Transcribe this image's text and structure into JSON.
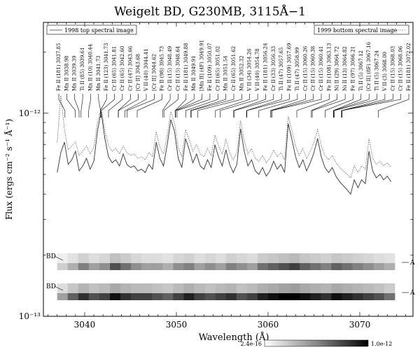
{
  "chart_data": {
    "type": "line",
    "title": "Weigelt BD, G230MB, 3115Å−1",
    "xlabel": "Wavelength (Å)",
    "ylabel": "Flux (ergs cm⁻² s⁻¹ Å⁻¹)",
    "xlim": [
      3035.5,
      3075.8
    ],
    "ylim": [
      1e-13,
      2.8e-12
    ],
    "yscale": "log",
    "grid": false,
    "legend": "top",
    "x_ticks": [
      {
        "value": 3040,
        "label": "3040"
      },
      {
        "value": 3050,
        "label": "3050"
      },
      {
        "value": 3060,
        "label": "3060"
      },
      {
        "value": 3070,
        "label": "3070"
      }
    ],
    "y_ticks": [
      {
        "value": 1e-12,
        "label": "10⁻¹²"
      },
      {
        "value": 1e-13,
        "label": "10⁻¹³"
      }
    ],
    "series": [
      {
        "name": "1998 top spectral image",
        "style": "solid",
        "color": "#333333",
        "x": [
          3037.0,
          3037.4,
          3037.8,
          3038.2,
          3038.6,
          3039.0,
          3039.4,
          3039.8,
          3040.2,
          3040.6,
          3041.0,
          3041.4,
          3041.8,
          3042.2,
          3042.6,
          3043.0,
          3043.4,
          3043.8,
          3044.2,
          3044.6,
          3045.0,
          3045.4,
          3045.8,
          3046.2,
          3046.6,
          3047.0,
          3047.4,
          3047.8,
          3048.2,
          3048.6,
          3049.0,
          3049.4,
          3049.8,
          3050.2,
          3050.6,
          3051.0,
          3051.4,
          3051.8,
          3052.2,
          3052.6,
          3053.0,
          3053.4,
          3053.8,
          3054.2,
          3054.6,
          3055.0,
          3055.4,
          3055.8,
          3056.2,
          3056.6,
          3057.0,
          3057.4,
          3057.8,
          3058.2,
          3058.6,
          3059.0,
          3059.4,
          3059.8,
          3060.2,
          3060.6,
          3061.0,
          3061.4,
          3061.8,
          3062.2,
          3062.6,
          3063.0,
          3063.4,
          3063.8,
          3064.2,
          3064.6,
          3065.0,
          3065.4,
          3065.8,
          3066.2,
          3066.6,
          3067.0,
          3067.4,
          3067.8,
          3068.2,
          3068.6,
          3069.0,
          3069.4,
          3069.8,
          3070.2,
          3070.6,
          3071.0,
          3071.4,
          3071.8,
          3072.2,
          3072.6,
          3073.0,
          3073.4
        ],
        "y": [
          5.1e-13,
          6.4e-13,
          7.2e-13,
          5.6e-13,
          5.9e-13,
          6.5e-13,
          5.2e-13,
          5.5e-13,
          6e-13,
          5.3e-13,
          5.8e-13,
          8.2e-13,
          1.02e-12,
          7.5e-13,
          6.1e-13,
          5.7e-13,
          5.9e-13,
          5.5e-13,
          6.3e-13,
          5.6e-13,
          5.4e-13,
          5.5e-13,
          5.2e-13,
          5.3e-13,
          5.1e-13,
          5.6e-13,
          5.3e-13,
          7.2e-13,
          6e-13,
          5.5e-13,
          7e-13,
          9.3e-13,
          8.1e-13,
          6e-13,
          5.4e-13,
          7.5e-13,
          6.6e-13,
          5.7e-13,
          6.3e-13,
          5.5e-13,
          5.3e-13,
          5.9e-13,
          5.4e-13,
          7e-13,
          6.1e-13,
          5.5e-13,
          6.6e-13,
          5.6e-13,
          5.1e-13,
          5.6e-13,
          8.4e-13,
          6.5e-13,
          5.5e-13,
          5.9e-13,
          5.2e-13,
          5e-13,
          5.4e-13,
          4.9e-13,
          5.2e-13,
          5.8e-13,
          5.3e-13,
          5.6e-13,
          5.1e-13,
          8.9e-13,
          7.4e-13,
          6.1e-13,
          5.4e-13,
          5.9e-13,
          5.2e-13,
          5.7e-13,
          6.4e-13,
          7.5e-13,
          6.1e-13,
          5.4e-13,
          5.1e-13,
          5.4e-13,
          4.9e-13,
          4.6e-13,
          4.4e-13,
          4.2e-13,
          4e-13,
          4.7e-13,
          4.3e-13,
          4.7e-13,
          4.5e-13,
          6.5e-13,
          5.2e-13,
          4.8e-13,
          5e-13,
          4.7e-13,
          4.9e-13,
          4.6e-13
        ]
      },
      {
        "name": "1999 bottom spectral image",
        "style": "dotted",
        "color": "#555555",
        "x": [
          3037.0,
          3037.4,
          3037.8,
          3038.2,
          3038.6,
          3039.0,
          3039.4,
          3039.8,
          3040.2,
          3040.6,
          3041.0,
          3041.4,
          3041.8,
          3042.2,
          3042.6,
          3043.0,
          3043.4,
          3043.8,
          3044.2,
          3044.6,
          3045.0,
          3045.4,
          3045.8,
          3046.2,
          3046.6,
          3047.0,
          3047.4,
          3047.8,
          3048.2,
          3048.6,
          3049.0,
          3049.4,
          3049.8,
          3050.2,
          3050.6,
          3051.0,
          3051.4,
          3051.8,
          3052.2,
          3052.6,
          3053.0,
          3053.4,
          3053.8,
          3054.2,
          3054.6,
          3055.0,
          3055.4,
          3055.8,
          3056.2,
          3056.6,
          3057.0,
          3057.4,
          3057.8,
          3058.2,
          3058.6,
          3059.0,
          3059.4,
          3059.8,
          3060.2,
          3060.6,
          3061.0,
          3061.4,
          3061.8,
          3062.2,
          3062.6,
          3063.0,
          3063.4,
          3063.8,
          3064.2,
          3064.6,
          3065.0,
          3065.4,
          3065.8,
          3066.2,
          3066.6,
          3067.0,
          3067.4,
          3067.8,
          3068.2,
          3068.6,
          3069.0,
          3069.4,
          3069.8,
          3070.2,
          3070.6,
          3071.0,
          3071.4,
          3071.8,
          3072.2,
          3072.6,
          3073.0,
          3073.4
        ],
        "y": [
          7.2e-13,
          1.22e-12,
          8.3e-13,
          6.6e-13,
          6.9e-13,
          7.2e-13,
          6.2e-13,
          6.5e-13,
          6.9e-13,
          6.3e-13,
          6.8e-13,
          9e-13,
          1.06e-12,
          8.2e-13,
          6.9e-13,
          6.5e-13,
          6.7e-13,
          6.3e-13,
          6.9e-13,
          6.4e-13,
          6.2e-13,
          6.3e-13,
          6e-13,
          6.1e-13,
          5.9e-13,
          6.4e-13,
          6.1e-13,
          8.1e-13,
          6.8e-13,
          6.3e-13,
          7.8e-13,
          1.02e-12,
          8.9e-13,
          6.8e-13,
          6.1e-13,
          8.3e-13,
          7.4e-13,
          6.5e-13,
          7e-13,
          6.3e-13,
          6.1e-13,
          6.7e-13,
          6.2e-13,
          7.8e-13,
          6.9e-13,
          6.3e-13,
          7.4e-13,
          6.4e-13,
          5.9e-13,
          6.4e-13,
          9.2e-13,
          7.3e-13,
          6.3e-13,
          6.7e-13,
          6e-13,
          5.8e-13,
          6.2e-13,
          5.7e-13,
          6e-13,
          6.6e-13,
          6.1e-13,
          6.4e-13,
          5.9e-13,
          9.7e-13,
          8.2e-13,
          6.9e-13,
          6.2e-13,
          6.7e-13,
          6e-13,
          6.5e-13,
          7.2e-13,
          8.3e-13,
          6.9e-13,
          6.2e-13,
          5.9e-13,
          6.2e-13,
          5.7e-13,
          5.4e-13,
          5.2e-13,
          5e-13,
          4.8e-13,
          5.5e-13,
          5.1e-13,
          5.5e-13,
          5.3e-13,
          7.5e-13,
          6e-13,
          5.6e-13,
          5.8e-13,
          5.5e-13,
          5.7e-13,
          5.4e-13
        ]
      }
    ],
    "line_ids": [
      {
        "label": "Fe II (181) 3037.85",
        "x": 3037.85
      },
      {
        "label": "Mn II 3038.98",
        "x": 3038.98
      },
      {
        "label": "Mn II 3039.39",
        "x": 3039.39
      },
      {
        "label": "Ti II (85) 3039.61",
        "x": 3039.61
      },
      {
        "label": "Mn II (10) 3040.44",
        "x": 3040.44
      },
      {
        "label": "Mn II 3041.73",
        "x": 3041.73
      },
      {
        "label": "Fe II (123) 3041.73",
        "x": 3041.73
      },
      {
        "label": "Cr II (65) 3041.81",
        "x": 3041.81
      },
      {
        "label": "Cr II (65) 3042.60",
        "x": 3042.6
      },
      {
        "label": "Cr II (47) 3043.66",
        "x": 3043.66
      },
      {
        "label": "[Cr II] 3043.68",
        "x": 3043.68
      },
      {
        "label": "V II (40) 3044.41",
        "x": 3044.41
      },
      {
        "label": "[Cr II] 3044.62",
        "x": 3044.62
      },
      {
        "label": "Fe II (98) 3045.73",
        "x": 3045.73
      },
      {
        "label": "Cr II (15) 3048.49",
        "x": 3048.49
      },
      {
        "label": "Cr II (15) 3048.64",
        "x": 3048.64
      },
      {
        "label": "Fe II (181) 3049.88",
        "x": 3049.88
      },
      {
        "label": "Mn II 3049.91",
        "x": 3049.91
      },
      {
        "label": "[Mn II] (4F) 3049.91",
        "x": 3049.91
      },
      {
        "label": "Fe II (109) 3050.07",
        "x": 3050.07
      },
      {
        "label": "Cr II (65) 3051.02",
        "x": 3051.02
      },
      {
        "label": "Mn II 3051.54",
        "x": 3051.54
      },
      {
        "label": "Cr II (65) 3051.62",
        "x": 3051.62
      },
      {
        "label": "Mn II 3052.32",
        "x": 3052.32
      },
      {
        "label": "V II (34) 3054.26",
        "x": 3054.26
      },
      {
        "label": "V II (40) 3054.78",
        "x": 3054.78
      },
      {
        "label": "Fe II (181) 3056.24",
        "x": 3056.24
      },
      {
        "label": "Cr II (33) 3056.33",
        "x": 3056.33
      },
      {
        "label": "Ti II (47) 3057.65",
        "x": 3057.65
      },
      {
        "label": "Fe II (109) 3057.69",
        "x": 3057.69
      },
      {
        "label": "Ti II (47) 3058.99",
        "x": 3058.99
      },
      {
        "label": "Cr II (15) 3060.26",
        "x": 3060.26
      },
      {
        "label": "Cr II (15) 3060.38",
        "x": 3060.38
      },
      {
        "label": "Cr II (15) 3060.41",
        "x": 3060.41
      },
      {
        "label": "Fe II (108) 3063.13",
        "x": 3063.13
      },
      {
        "label": "Ni II (29) 3064.72",
        "x": 3064.72
      },
      {
        "label": "Ni II (13) 3064.82",
        "x": 3064.82
      },
      {
        "label": "Fe II (97) 3066.21",
        "x": 3066.21
      },
      {
        "label": "Ti II (5) 3067.12",
        "x": 3067.12
      },
      {
        "label": "[Cr II] (8F) 3067.16",
        "x": 3067.16
      },
      {
        "label": "Ti II (5) 3067.24",
        "x": 3067.24
      },
      {
        "label": "V II (3) 3068.00",
        "x": 3068.0
      },
      {
        "label": "Cr II (15) 3068.03",
        "x": 3068.03
      },
      {
        "label": "Cr II (15) 3068.06",
        "x": 3068.06
      },
      {
        "label": "Fe II (181) 3072.02",
        "x": 3072.02
      }
    ],
    "spectral_images": [
      {
        "label_left": "BD",
        "label_right": "A",
        "darkness": [
          0.15,
          0.25,
          0.4,
          0.3,
          0.35,
          0.55,
          0.45,
          0.35,
          0.3,
          0.3,
          0.25,
          0.35,
          0.4,
          0.3,
          0.35,
          0.3,
          0.4,
          0.35,
          0.3,
          0.45,
          0.5,
          0.55,
          0.6,
          0.5,
          0.45,
          0.4,
          0.5,
          0.45,
          0.4,
          0.35,
          0.3,
          0.25
        ]
      },
      {
        "label_left": "BD",
        "label_right": "A",
        "darkness": [
          0.3,
          0.5,
          0.65,
          0.55,
          0.6,
          0.75,
          0.65,
          0.6,
          0.6,
          0.55,
          0.5,
          0.6,
          0.7,
          0.6,
          0.55,
          0.6,
          0.65,
          0.55,
          0.6,
          0.7,
          0.75,
          0.8,
          0.85,
          0.75,
          0.7,
          0.65,
          0.75,
          0.7,
          0.65,
          0.6,
          0.55,
          0.45
        ]
      }
    ],
    "colorbar": {
      "min_label": "2.4e-16",
      "max_label": "1.0e-12"
    }
  },
  "legend": {
    "series1": "1998 top spectral image",
    "series2": "1999 bottom spectral image"
  },
  "colors": {
    "axis": "#000000",
    "series1": "#333333",
    "series2": "#555555"
  }
}
